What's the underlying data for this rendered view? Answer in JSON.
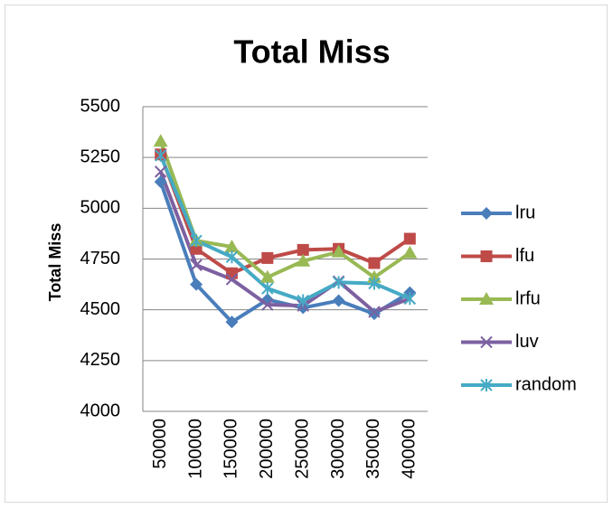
{
  "chart_data": {
    "type": "line",
    "title": "Total Miss",
    "y_label": "Total Miss",
    "categories": [
      "50000",
      "100000",
      "150000",
      "200000",
      "250000",
      "300000",
      "350000",
      "400000"
    ],
    "series": [
      {
        "name": "lru",
        "color": "#4a7ebb",
        "marker": "diamond",
        "values": [
          5130,
          4625,
          4440,
          4550,
          4510,
          4545,
          4480,
          4585
        ]
      },
      {
        "name": "lfu",
        "color": "#be4b48",
        "marker": "square",
        "values": [
          5265,
          4800,
          4680,
          4755,
          4795,
          4800,
          4730,
          4850
        ]
      },
      {
        "name": "lrfu",
        "color": "#98b954",
        "marker": "triangle",
        "values": [
          5330,
          4840,
          4810,
          4660,
          4740,
          4785,
          4660,
          4780
        ]
      },
      {
        "name": "luv",
        "color": "#7d60a0",
        "marker": "x",
        "values": [
          5180,
          4720,
          4650,
          4525,
          4520,
          4640,
          4490,
          4555
        ]
      },
      {
        "name": "random",
        "color": "#46aac5",
        "marker": "star",
        "values": [
          5260,
          4840,
          4760,
          4605,
          4545,
          4635,
          4630,
          4555
        ]
      }
    ],
    "ylim": [
      4000,
      5500
    ],
    "yticks": [
      4000,
      4250,
      4500,
      4750,
      5000,
      5250,
      5500
    ],
    "grid": true,
    "legend": "right"
  }
}
